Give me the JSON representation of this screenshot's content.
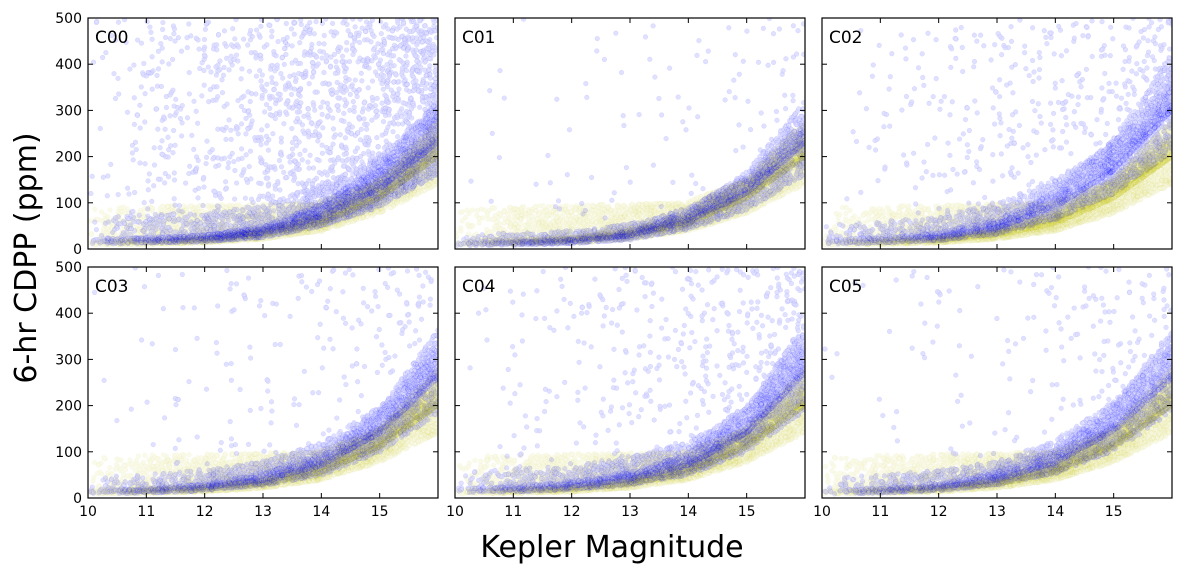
{
  "figure": {
    "xlabel": "Kepler Magnitude",
    "ylabel": "6-hr CDPP (ppm)"
  },
  "colors": {
    "k2_points": "#0000ff",
    "kepler_points": "#bfbf00",
    "axes": "#000000",
    "background": "#ffffff"
  },
  "chart_data": [
    {
      "type": "scatter",
      "panel": "C00",
      "xlim": [
        10,
        16
      ],
      "ylim": [
        0,
        500
      ],
      "xticks": [
        10,
        11,
        12,
        13,
        14,
        15
      ],
      "yticks": [
        0,
        100,
        200,
        300,
        400,
        500
      ],
      "grid": false,
      "series": [
        {
          "color": "#bfbf00",
          "alpha": 0.08,
          "n_points": 9000,
          "trend": [
            [
              10,
              12
            ],
            [
              11,
              14
            ],
            [
              12,
              18
            ],
            [
              13,
              30
            ],
            [
              14,
              55
            ],
            [
              15,
              110
            ],
            [
              16,
              200
            ]
          ],
          "band": [
            [
              10,
              90
            ],
            [
              12,
              95
            ],
            [
              13.9,
              100
            ],
            [
              15,
              150
            ],
            [
              16,
              250
            ]
          ]
        },
        {
          "color": "#0000ff",
          "alpha": 0.12,
          "n_points": 6500,
          "trend": [
            [
              10,
              15
            ],
            [
              11,
              18
            ],
            [
              12,
              22
            ],
            [
              13,
              35
            ],
            [
              14,
              70
            ],
            [
              15,
              130
            ],
            [
              16,
              230
            ]
          ],
          "band": [
            [
              10,
              70
            ],
            [
              12,
              80
            ],
            [
              13,
              95
            ],
            [
              14,
              140
            ],
            [
              15,
              200
            ],
            [
              16,
              320
            ]
          ],
          "outlier_fraction": 0.22
        }
      ]
    },
    {
      "type": "scatter",
      "panel": "C01",
      "xlim": [
        10,
        16
      ],
      "ylim": [
        0,
        500
      ],
      "xticks": [
        10,
        11,
        12,
        13,
        14,
        15
      ],
      "yticks": [
        0,
        100,
        200,
        300,
        400,
        500
      ],
      "grid": false,
      "series": [
        {
          "color": "#bfbf00",
          "alpha": 0.08,
          "n_points": 9000,
          "trend": [
            [
              10,
              12
            ],
            [
              11,
              14
            ],
            [
              12,
              18
            ],
            [
              13,
              30
            ],
            [
              14,
              55
            ],
            [
              15,
              110
            ],
            [
              16,
              200
            ]
          ],
          "band": [
            [
              10,
              90
            ],
            [
              12,
              95
            ],
            [
              13.9,
              100
            ],
            [
              15,
              150
            ],
            [
              16,
              250
            ]
          ]
        },
        {
          "color": "#0000ff",
          "alpha": 0.12,
          "n_points": 3500,
          "trend": [
            [
              10,
              10
            ],
            [
              11,
              12
            ],
            [
              12,
              16
            ],
            [
              13,
              28
            ],
            [
              14,
              60
            ],
            [
              15,
              120
            ],
            [
              16,
              230
            ]
          ],
          "band": [
            [
              10,
              30
            ],
            [
              12,
              40
            ],
            [
              13,
              55
            ],
            [
              14,
              90
            ],
            [
              15,
              160
            ],
            [
              16,
              280
            ]
          ],
          "outlier_fraction": 0.03
        }
      ]
    },
    {
      "type": "scatter",
      "panel": "C02",
      "xlim": [
        10,
        16
      ],
      "ylim": [
        0,
        500
      ],
      "xticks": [
        10,
        11,
        12,
        13,
        14,
        15
      ],
      "yticks": [
        0,
        100,
        200,
        300,
        400,
        500
      ],
      "grid": false,
      "series": [
        {
          "color": "#bfbf00",
          "alpha": 0.08,
          "n_points": 9000,
          "trend": [
            [
              10,
              12
            ],
            [
              11,
              14
            ],
            [
              12,
              18
            ],
            [
              13,
              30
            ],
            [
              14,
              55
            ],
            [
              15,
              110
            ],
            [
              16,
              200
            ]
          ],
          "band": [
            [
              10,
              90
            ],
            [
              12,
              95
            ],
            [
              13.9,
              100
            ],
            [
              15,
              150
            ],
            [
              16,
              250
            ]
          ]
        },
        {
          "color": "#0000ff",
          "alpha": 0.12,
          "n_points": 4500,
          "trend": [
            [
              10,
              15
            ],
            [
              11,
              18
            ],
            [
              12,
              25
            ],
            [
              13,
              45
            ],
            [
              14,
              90
            ],
            [
              15,
              170
            ],
            [
              16,
              300
            ]
          ],
          "band": [
            [
              10,
              50
            ],
            [
              12,
              70
            ],
            [
              13,
              100
            ],
            [
              14,
              150
            ],
            [
              15,
              230
            ],
            [
              16,
              360
            ]
          ],
          "outlier_fraction": 0.1
        }
      ]
    },
    {
      "type": "scatter",
      "panel": "C03",
      "xlim": [
        10,
        16
      ],
      "ylim": [
        0,
        500
      ],
      "xticks": [
        10,
        11,
        12,
        13,
        14,
        15
      ],
      "yticks": [
        0,
        100,
        200,
        300,
        400,
        500
      ],
      "grid": false,
      "series": [
        {
          "color": "#bfbf00",
          "alpha": 0.08,
          "n_points": 9000,
          "trend": [
            [
              10,
              12
            ],
            [
              11,
              14
            ],
            [
              12,
              18
            ],
            [
              13,
              30
            ],
            [
              14,
              55
            ],
            [
              15,
              110
            ],
            [
              16,
              200
            ]
          ],
          "band": [
            [
              10,
              90
            ],
            [
              12,
              95
            ],
            [
              13.9,
              100
            ],
            [
              15,
              150
            ],
            [
              16,
              250
            ]
          ]
        },
        {
          "color": "#0000ff",
          "alpha": 0.12,
          "n_points": 4000,
          "trend": [
            [
              10,
              12
            ],
            [
              11,
              15
            ],
            [
              12,
              22
            ],
            [
              13,
              38
            ],
            [
              14,
              70
            ],
            [
              15,
              140
            ],
            [
              16,
              260
            ]
          ],
          "band": [
            [
              10,
              45
            ],
            [
              12,
              60
            ],
            [
              13,
              80
            ],
            [
              14,
              120
            ],
            [
              15,
              200
            ],
            [
              16,
              330
            ]
          ],
          "outlier_fraction": 0.05
        }
      ]
    },
    {
      "type": "scatter",
      "panel": "C04",
      "xlim": [
        10,
        16
      ],
      "ylim": [
        0,
        500
      ],
      "xticks": [
        10,
        11,
        12,
        13,
        14,
        15
      ],
      "yticks": [
        0,
        100,
        200,
        300,
        400,
        500
      ],
      "grid": false,
      "series": [
        {
          "color": "#bfbf00",
          "alpha": 0.08,
          "n_points": 9000,
          "trend": [
            [
              10,
              12
            ],
            [
              11,
              14
            ],
            [
              12,
              18
            ],
            [
              13,
              30
            ],
            [
              14,
              55
            ],
            [
              15,
              110
            ],
            [
              16,
              200
            ]
          ],
          "band": [
            [
              10,
              90
            ],
            [
              12,
              95
            ],
            [
              13.9,
              100
            ],
            [
              15,
              150
            ],
            [
              16,
              250
            ]
          ]
        },
        {
          "color": "#0000ff",
          "alpha": 0.12,
          "n_points": 4500,
          "trend": [
            [
              10,
              15
            ],
            [
              11,
              18
            ],
            [
              12,
              25
            ],
            [
              13,
              40
            ],
            [
              14,
              70
            ],
            [
              15,
              140
            ],
            [
              16,
              270
            ]
          ],
          "band": [
            [
              10,
              55
            ],
            [
              12,
              70
            ],
            [
              13,
              90
            ],
            [
              14,
              120
            ],
            [
              15,
              200
            ],
            [
              16,
              340
            ]
          ],
          "outlier_fraction": 0.1
        }
      ]
    },
    {
      "type": "scatter",
      "panel": "C05",
      "xlim": [
        10,
        16
      ],
      "ylim": [
        0,
        500
      ],
      "xticks": [
        10,
        11,
        12,
        13,
        14,
        15
      ],
      "yticks": [
        0,
        100,
        200,
        300,
        400,
        500
      ],
      "grid": false,
      "series": [
        {
          "color": "#bfbf00",
          "alpha": 0.08,
          "n_points": 9000,
          "trend": [
            [
              10,
              12
            ],
            [
              11,
              14
            ],
            [
              12,
              18
            ],
            [
              13,
              30
            ],
            [
              14,
              55
            ],
            [
              15,
              110
            ],
            [
              16,
              200
            ]
          ],
          "band": [
            [
              10,
              90
            ],
            [
              12,
              95
            ],
            [
              13.9,
              100
            ],
            [
              15,
              150
            ],
            [
              16,
              250
            ]
          ]
        },
        {
          "color": "#0000ff",
          "alpha": 0.12,
          "n_points": 3800,
          "trend": [
            [
              10,
              12
            ],
            [
              11,
              15
            ],
            [
              12,
              22
            ],
            [
              13,
              40
            ],
            [
              14,
              75
            ],
            [
              15,
              145
            ],
            [
              16,
              260
            ]
          ],
          "band": [
            [
              10,
              45
            ],
            [
              12,
              60
            ],
            [
              13,
              80
            ],
            [
              14,
              125
            ],
            [
              15,
              210
            ],
            [
              16,
              330
            ]
          ],
          "outlier_fraction": 0.05
        }
      ]
    }
  ]
}
